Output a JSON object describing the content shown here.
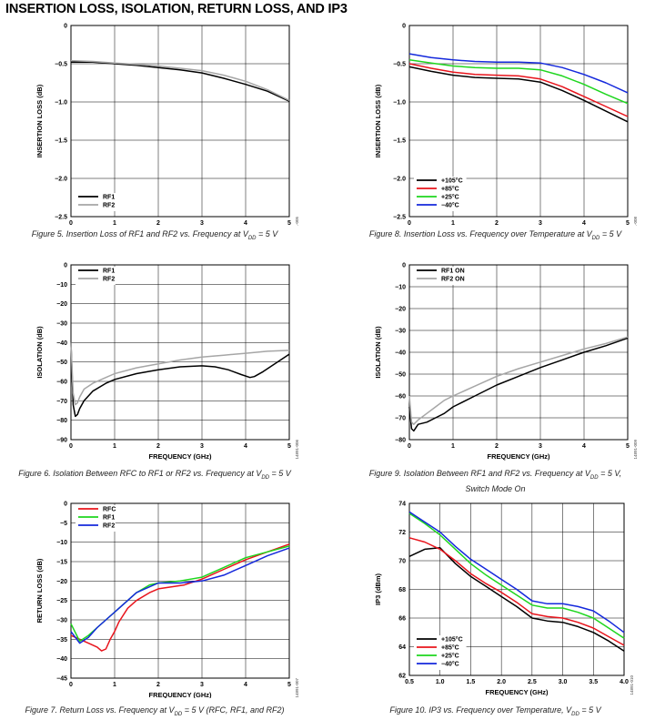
{
  "page": {
    "title": "INSERTION LOSS, ISOLATION, RETURN LOSS, AND IP3"
  },
  "captions": {
    "fig5": "Figure 5. Insertion Loss of RF1 and RF2 vs. Frequency at V₀₀ = 5 V",
    "fig8": "Figure 8. Insertion Loss vs. Frequency over Temperature at V₀₀ = 5 V",
    "fig6": "Figure 6. Isolation Between RFC to RF1 or RF2 vs. Frequency at V₀₀ = 5 V",
    "fig9_line1": "Figure 9. Isolation Between RF1 and RF2 vs. Frequency at V₀₀ = 5 V,",
    "fig9_line2": "Switch Mode On",
    "fig7": "Figure 7. Return Loss vs. Frequency at V₀₀ = 5 V (RFC, RF1, and RF2)",
    "fig10": "Figure 10. IP3 vs. Frequency over Temperature, V₀₀ = 5 V"
  },
  "colors": {
    "black": "#000000",
    "gray": "#a6a6a6",
    "red": "#e8141c",
    "green": "#1ed61e",
    "blue": "#1428dc"
  },
  "chart_data": [
    {
      "id": "fig5",
      "type": "line",
      "fig_id": "14891-005",
      "xlabel": "FREQUENCY (GHz)",
      "ylabel": "INSERTION LOSS (dB)",
      "xlim": [
        0,
        5
      ],
      "ylim": [
        -2.5,
        0
      ],
      "xticks": [
        0,
        1,
        2,
        3,
        4,
        5
      ],
      "xticklabels": [
        "0",
        "1",
        "2",
        "3",
        "4",
        "5"
      ],
      "yticks": [
        0,
        -0.5,
        -1.0,
        -1.5,
        -2.0,
        -2.5
      ],
      "yticklabels": [
        "0",
        "−0.5",
        "−1.0",
        "−1.5",
        "−2.0",
        "−2.5"
      ],
      "legend_position": "bottom-left",
      "series": [
        {
          "name": "RF1",
          "color": "#000000",
          "x": [
            0,
            0.5,
            1,
            1.5,
            2,
            2.5,
            3,
            3.5,
            4,
            4.5,
            5
          ],
          "y": [
            -0.48,
            -0.48,
            -0.5,
            -0.52,
            -0.55,
            -0.58,
            -0.62,
            -0.69,
            -0.77,
            -0.86,
            -0.99
          ]
        },
        {
          "name": "RF2",
          "color": "#a6a6a6",
          "x": [
            0,
            0.5,
            1,
            1.5,
            2,
            2.5,
            3,
            3.5,
            4,
            4.5,
            5
          ],
          "y": [
            -0.46,
            -0.47,
            -0.49,
            -0.51,
            -0.53,
            -0.56,
            -0.59,
            -0.65,
            -0.73,
            -0.84,
            -0.98
          ]
        }
      ]
    },
    {
      "id": "fig8",
      "type": "line",
      "fig_id": "14891-008",
      "xlabel": "FREQUENCY (GHz)",
      "ylabel": "INSERTION LOSS (dB)",
      "xlim": [
        0,
        5
      ],
      "ylim": [
        -2.5,
        0
      ],
      "xticks": [
        0,
        1,
        2,
        3,
        4,
        5
      ],
      "xticklabels": [
        "0",
        "1",
        "2",
        "3",
        "4",
        "5"
      ],
      "yticks": [
        0,
        -0.5,
        -1.0,
        -1.5,
        -2.0,
        -2.5
      ],
      "yticklabels": [
        "0",
        "−0.5",
        "−1.0",
        "−1.5",
        "−2.0",
        "−2.5"
      ],
      "legend_position": "bottom-left",
      "series": [
        {
          "name": "+105°C",
          "color": "#000000",
          "x": [
            0,
            0.5,
            1,
            1.5,
            2,
            2.5,
            3,
            3.5,
            4,
            4.5,
            5
          ],
          "y": [
            -0.54,
            -0.6,
            -0.65,
            -0.68,
            -0.69,
            -0.7,
            -0.74,
            -0.85,
            -0.98,
            -1.12,
            -1.26
          ]
        },
        {
          "name": "+85°C",
          "color": "#e8141c",
          "x": [
            0,
            0.5,
            1,
            1.5,
            2,
            2.5,
            3,
            3.5,
            4,
            4.5,
            5
          ],
          "y": [
            -0.5,
            -0.56,
            -0.61,
            -0.64,
            -0.65,
            -0.66,
            -0.7,
            -0.8,
            -0.93,
            -1.06,
            -1.19
          ]
        },
        {
          "name": "+25°C",
          "color": "#1ed61e",
          "x": [
            0,
            0.5,
            1,
            1.5,
            2,
            2.5,
            3,
            3.5,
            4,
            4.5,
            5
          ],
          "y": [
            -0.45,
            -0.49,
            -0.53,
            -0.55,
            -0.56,
            -0.56,
            -0.58,
            -0.66,
            -0.77,
            -0.9,
            -1.02
          ]
        },
        {
          "name": "−40°C",
          "color": "#1428dc",
          "x": [
            0,
            0.5,
            1,
            1.5,
            2,
            2.5,
            3,
            3.5,
            4,
            4.5,
            5
          ],
          "y": [
            -0.37,
            -0.42,
            -0.45,
            -0.47,
            -0.48,
            -0.48,
            -0.49,
            -0.55,
            -0.64,
            -0.75,
            -0.88
          ]
        }
      ]
    },
    {
      "id": "fig6",
      "type": "line",
      "fig_id": "14891-006",
      "xlabel": "FREQUENCY (GHz)",
      "ylabel": "ISOLATION (dB)",
      "xlim": [
        0,
        5
      ],
      "ylim": [
        -90,
        0
      ],
      "xticks": [
        0,
        1,
        2,
        3,
        4,
        5
      ],
      "xticklabels": [
        "0",
        "1",
        "2",
        "3",
        "4",
        "5"
      ],
      "yticks": [
        0,
        -10,
        -20,
        -30,
        -40,
        -50,
        -60,
        -70,
        -80,
        -90
      ],
      "yticklabels": [
        "0",
        "−10",
        "−20",
        "−30",
        "−40",
        "−50",
        "−60",
        "−70",
        "−80",
        "−90"
      ],
      "legend_position": "top-left",
      "series": [
        {
          "name": "RF1",
          "color": "#000000",
          "x": [
            0,
            0.05,
            0.1,
            0.15,
            0.2,
            0.3,
            0.5,
            0.8,
            1,
            1.5,
            2,
            2.5,
            3,
            3.3,
            3.6,
            3.9,
            4.1,
            4.2,
            4.4,
            4.6,
            4.8,
            5
          ],
          "y": [
            -40,
            -72,
            -78,
            -77,
            -74,
            -70,
            -65,
            -61,
            -59,
            -56,
            -54,
            -52.5,
            -52,
            -52.5,
            -54,
            -56.5,
            -58,
            -57.5,
            -55,
            -52,
            -49,
            -46
          ]
        },
        {
          "name": "RF2",
          "color": "#a6a6a6",
          "x": [
            0,
            0.05,
            0.1,
            0.15,
            0.2,
            0.3,
            0.5,
            0.8,
            1,
            1.5,
            2,
            2.5,
            3,
            3.5,
            4,
            4.5,
            5
          ],
          "y": [
            -40,
            -66,
            -72,
            -71,
            -68,
            -64,
            -61,
            -58,
            -56,
            -53,
            -51,
            -49,
            -47.5,
            -46.5,
            -45.5,
            -44.5,
            -44
          ]
        }
      ]
    },
    {
      "id": "fig9",
      "type": "line",
      "fig_id": "14891-009",
      "xlabel": "FREQUENCY (GHz)",
      "ylabel": "ISOLATION (dB)",
      "xlim": [
        0,
        5
      ],
      "ylim": [
        -80,
        0
      ],
      "xticks": [
        0,
        1,
        2,
        3,
        4,
        5
      ],
      "xticklabels": [
        "0",
        "1",
        "2",
        "3",
        "4",
        "5"
      ],
      "yticks": [
        0,
        -10,
        -20,
        -30,
        -40,
        -50,
        -60,
        -70,
        -80
      ],
      "yticklabels": [
        "0",
        "−10",
        "−20",
        "−30",
        "−40",
        "−50",
        "−60",
        "−70",
        "−80"
      ],
      "legend_position": "top-left",
      "series": [
        {
          "name": "RF1 ON",
          "color": "#000000",
          "x": [
            0,
            0.05,
            0.1,
            0.2,
            0.4,
            0.6,
            0.8,
            1,
            1.5,
            2,
            2.5,
            3,
            3.5,
            4,
            4.5,
            5
          ],
          "y": [
            -65,
            -75,
            -76,
            -73,
            -72,
            -70,
            -68,
            -65,
            -60,
            -55,
            -51,
            -47,
            -43.5,
            -40,
            -37,
            -33.5
          ]
        },
        {
          "name": "RF2 ON",
          "color": "#a6a6a6",
          "x": [
            0,
            0.05,
            0.1,
            0.2,
            0.4,
            0.6,
            0.8,
            1,
            1.5,
            2,
            2.5,
            3,
            3.5,
            4,
            4.5,
            5
          ],
          "y": [
            -60,
            -72,
            -73,
            -71,
            -68,
            -65,
            -62,
            -60,
            -55.5,
            -51,
            -47.5,
            -44.5,
            -41.5,
            -38.5,
            -36,
            -33
          ]
        }
      ]
    },
    {
      "id": "fig7",
      "type": "line",
      "fig_id": "14891-007",
      "xlabel": "FREQUENCY (GHz)",
      "ylabel": "RETURN LOSS (dB)",
      "xlim": [
        0,
        5
      ],
      "ylim": [
        -45,
        0
      ],
      "xticks": [
        0,
        1,
        2,
        3,
        4,
        5
      ],
      "xticklabels": [
        "0",
        "1",
        "2",
        "3",
        "4",
        "5"
      ],
      "yticks": [
        0,
        -5,
        -10,
        -15,
        -20,
        -25,
        -30,
        -35,
        -40,
        -45
      ],
      "yticklabels": [
        "0",
        "−5",
        "−10",
        "−15",
        "−20",
        "−25",
        "−30",
        "−35",
        "−40",
        "−45"
      ],
      "legend_position": "top-left",
      "series": [
        {
          "name": "RFC",
          "color": "#e8141c",
          "x": [
            0,
            0.2,
            0.4,
            0.6,
            0.7,
            0.8,
            0.9,
            1,
            1.1,
            1.3,
            1.5,
            1.8,
            2,
            2.3,
            2.6,
            3,
            3.5,
            4,
            4.5,
            5
          ],
          "y": [
            -34,
            -35,
            -36,
            -37,
            -38,
            -37.5,
            -35,
            -33,
            -30.5,
            -27,
            -25,
            -23,
            -22,
            -21.5,
            -21,
            -19.5,
            -17,
            -14.5,
            -12.5,
            -10.5
          ]
        },
        {
          "name": "RF1",
          "color": "#1ed61e",
          "x": [
            0,
            0.2,
            0.4,
            0.6,
            0.8,
            1,
            1.2,
            1.5,
            1.8,
            2,
            2.5,
            3,
            3.5,
            4,
            4.5,
            5
          ],
          "y": [
            -31,
            -35.5,
            -34,
            -32,
            -30,
            -28,
            -26,
            -23,
            -21,
            -20.5,
            -20,
            -19,
            -16.5,
            -14,
            -12.5,
            -11
          ]
        },
        {
          "name": "RF2",
          "color": "#1428dc",
          "x": [
            0,
            0.2,
            0.4,
            0.6,
            0.8,
            1,
            1.2,
            1.5,
            1.8,
            2,
            2.5,
            3,
            3.5,
            4,
            4.5,
            5
          ],
          "y": [
            -33,
            -36,
            -34.5,
            -32,
            -30,
            -28,
            -26,
            -23,
            -21.5,
            -20.5,
            -20.5,
            -20,
            -18.5,
            -16,
            -13.5,
            -11.5
          ]
        }
      ]
    },
    {
      "id": "fig10",
      "type": "line",
      "fig_id": "14891-010",
      "xlabel": "FREQUENCY (GHz)",
      "ylabel": "IP3 (dBm)",
      "xlim": [
        0.5,
        4.0
      ],
      "ylim": [
        62,
        74
      ],
      "xticks": [
        0.5,
        1.0,
        1.5,
        2.0,
        2.5,
        3.0,
        3.5,
        4.0
      ],
      "xticklabels": [
        "0.5",
        "1.0",
        "1.5",
        "2.0",
        "2.5",
        "3.0",
        "3.5",
        "4.0"
      ],
      "yticks": [
        62,
        64,
        66,
        68,
        70,
        72,
        74
      ],
      "yticklabels": [
        "62",
        "64",
        "66",
        "68",
        "70",
        "72",
        "74"
      ],
      "legend_position": "bottom-left",
      "series": [
        {
          "name": "+105°C",
          "color": "#000000",
          "x": [
            0.5,
            0.75,
            1.0,
            1.25,
            1.5,
            1.75,
            2.0,
            2.25,
            2.5,
            2.75,
            3.0,
            3.25,
            3.5,
            3.75,
            4.0
          ],
          "y": [
            70.3,
            70.8,
            70.9,
            69.8,
            68.9,
            68.2,
            67.5,
            66.8,
            66.0,
            65.8,
            65.7,
            65.4,
            65.0,
            64.4,
            63.7
          ]
        },
        {
          "name": "+85°C",
          "color": "#e8141c",
          "x": [
            0.5,
            0.75,
            1.0,
            1.25,
            1.5,
            1.75,
            2.0,
            2.25,
            2.5,
            2.75,
            3.0,
            3.25,
            3.5,
            3.75,
            4.0
          ],
          "y": [
            71.6,
            71.3,
            70.8,
            70.0,
            69.1,
            68.4,
            67.8,
            67.1,
            66.3,
            66.1,
            66.0,
            65.7,
            65.3,
            64.7,
            64.1
          ]
        },
        {
          "name": "+25°C",
          "color": "#1ed61e",
          "x": [
            0.5,
            0.75,
            1.0,
            1.25,
            1.5,
            1.75,
            2.0,
            2.25,
            2.5,
            2.75,
            3.0,
            3.25,
            3.5,
            3.75,
            4.0
          ],
          "y": [
            73.3,
            72.6,
            71.8,
            70.8,
            69.8,
            69.0,
            68.3,
            67.6,
            66.9,
            66.7,
            66.7,
            66.4,
            66.0,
            65.3,
            64.6
          ]
        },
        {
          "name": "−40°C",
          "color": "#1428dc",
          "x": [
            0.5,
            0.75,
            1.0,
            1.25,
            1.5,
            1.75,
            2.0,
            2.25,
            2.5,
            2.75,
            3.0,
            3.25,
            3.5,
            3.75,
            4.0
          ],
          "y": [
            73.4,
            72.7,
            72.0,
            71.0,
            70.1,
            69.4,
            68.7,
            68.0,
            67.2,
            67.0,
            67.0,
            66.8,
            66.5,
            65.8,
            65.0
          ]
        }
      ]
    }
  ]
}
